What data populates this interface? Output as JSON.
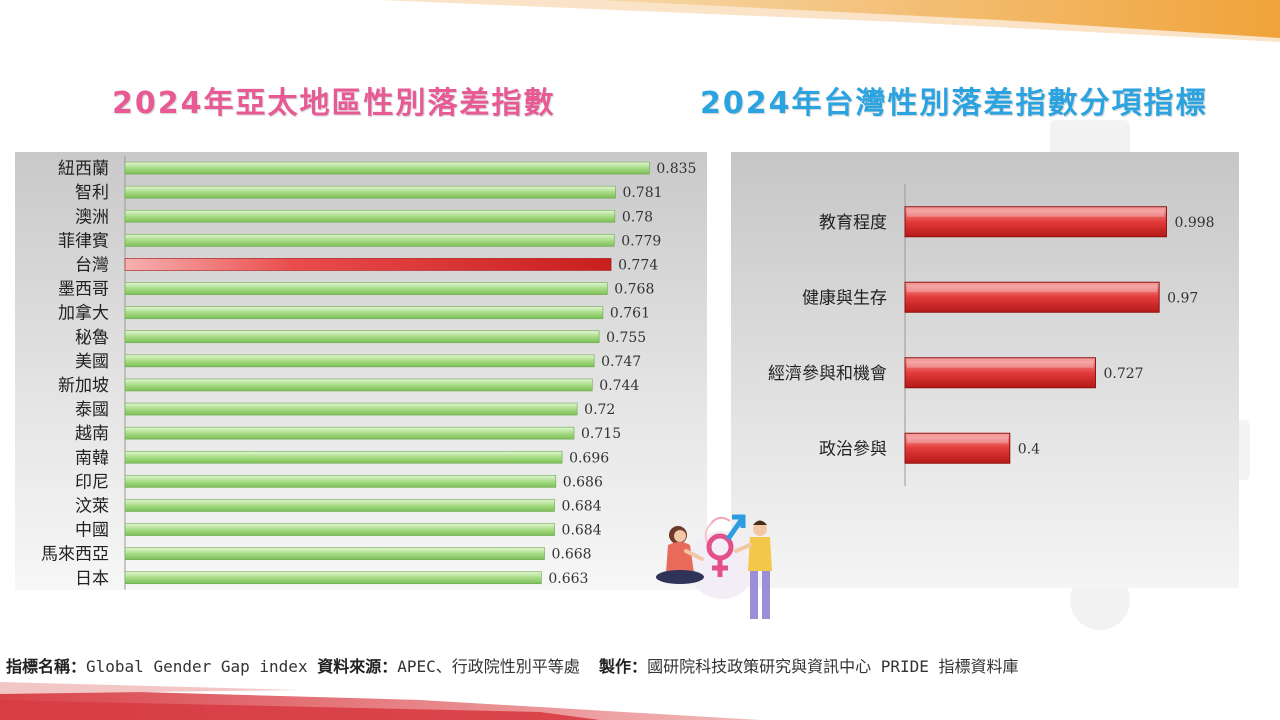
{
  "titles": {
    "left": "2024年亞太地區性別落差指數",
    "right": "2024年台灣性別落差指數分項指標"
  },
  "footer": {
    "indicator_label": "指標名稱：",
    "indicator_value": "Global Gender Gap index",
    "source_label": "資料來源：",
    "source_value": "APEC、行政院性別平等處",
    "producer_label": "製作：",
    "producer_value": "國研院科技政策研究與資訊中心 PRIDE 指標資料庫"
  },
  "colors": {
    "title_left": "#e75a93",
    "title_right": "#2aa3e0",
    "bar_green": "#8fcf6a",
    "bar_red": "#d42a2a",
    "highlight": "台灣"
  },
  "chart_data": [
    {
      "type": "bar",
      "orientation": "horizontal",
      "categories": [
        "紐西蘭",
        "智利",
        "澳洲",
        "菲律賓",
        "台灣",
        "墨西哥",
        "加拿大",
        "秘魯",
        "美國",
        "新加坡",
        "泰國",
        "越南",
        "南韓",
        "印尼",
        "汶萊",
        "中國",
        "馬來西亞",
        "日本"
      ],
      "values": [
        0.835,
        0.781,
        0.78,
        0.779,
        0.774,
        0.768,
        0.761,
        0.755,
        0.747,
        0.744,
        0.72,
        0.715,
        0.696,
        0.686,
        0.684,
        0.684,
        0.668,
        0.663
      ],
      "value_labels": [
        "0.835",
        "0.781",
        "0.78",
        "0.779",
        "0.774",
        "0.768",
        "0.761",
        "0.755",
        "0.747",
        "0.744",
        "0.72",
        "0.715",
        "0.696",
        "0.686",
        "0.684",
        "0.684",
        "0.668",
        "0.663"
      ],
      "highlight_category": "台灣",
      "xlim": [
        0,
        1
      ],
      "grid": false
    },
    {
      "type": "bar",
      "orientation": "horizontal",
      "categories": [
        "教育程度",
        "健康與生存",
        "經濟參與和機會",
        "政治參與"
      ],
      "values": [
        0.998,
        0.97,
        0.727,
        0.4
      ],
      "value_labels": [
        "0.998",
        "0.97",
        "0.727",
        "0.4"
      ],
      "xlim": [
        0,
        1.2
      ],
      "grid": false
    }
  ]
}
